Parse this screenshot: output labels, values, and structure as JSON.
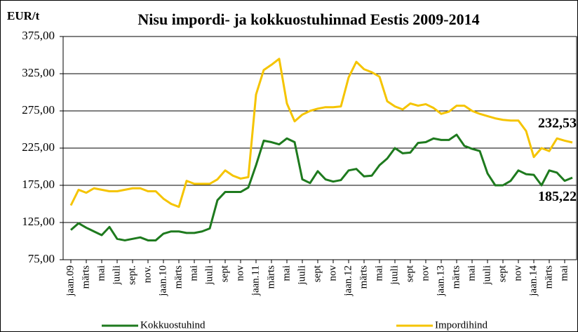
{
  "chart_data": {
    "type": "line",
    "title": "Nisu impordi- ja kokkuostuhinnad Eestis 2009-2014",
    "y_label": "EUR/t",
    "categories": [
      "jaan.09",
      null,
      "märts",
      null,
      "mai",
      null,
      "juuli",
      null,
      "sept.",
      null,
      "nov.",
      null,
      "jaan.10",
      null,
      "märts",
      null,
      "mai",
      null,
      "juuli",
      null,
      "sept",
      null,
      "nov",
      null,
      "jaan.11",
      null,
      "märts",
      null,
      "mai",
      null,
      "juuli",
      null,
      "sept",
      null,
      "nov",
      null,
      "jaan.12",
      null,
      "märts",
      null,
      "mai",
      null,
      "juuli",
      null,
      "sept",
      null,
      "nov",
      null,
      "jaan.13",
      null,
      "märts",
      null,
      "mai",
      null,
      "juuli",
      null,
      "sept",
      null,
      "nov",
      null,
      "jaan.14",
      null,
      "märts",
      null,
      "mai",
      null
    ],
    "series": [
      {
        "name": "Kokkuostuhind",
        "color": "#1e7a1e",
        "values": [
          115,
          124,
          118,
          113,
          108,
          119,
          103,
          101,
          103,
          105,
          101,
          101,
          110,
          113,
          113,
          111,
          111,
          113,
          117,
          155,
          166,
          166,
          166,
          172,
          202,
          235,
          233,
          230,
          238,
          233,
          183,
          178,
          194,
          183,
          180,
          182,
          195,
          197,
          187,
          188,
          202,
          211,
          225,
          218,
          219,
          232,
          233,
          238,
          236,
          236,
          243,
          228,
          224,
          221,
          191,
          175,
          175,
          181,
          195,
          190,
          189,
          175,
          195,
          192,
          181,
          185.22
        ],
        "value_labels": [
          null,
          null,
          null,
          null,
          null,
          null,
          null,
          null,
          null,
          null,
          null,
          null,
          null,
          null,
          null,
          null,
          null,
          null,
          null,
          null,
          null,
          null,
          null,
          null,
          null,
          null,
          null,
          null,
          null,
          null,
          null,
          null,
          null,
          null,
          null,
          null,
          null,
          null,
          null,
          null,
          null,
          null,
          null,
          null,
          null,
          null,
          null,
          null,
          null,
          null,
          null,
          null,
          null,
          null,
          null,
          null,
          null,
          null,
          null,
          null,
          null,
          null,
          null,
          null,
          null,
          "185,22"
        ]
      },
      {
        "name": "Impordihind",
        "color": "#f5c400",
        "values": [
          148,
          169,
          165,
          171,
          169,
          167,
          167,
          169,
          171,
          171,
          167,
          167,
          157,
          150,
          146,
          181,
          177,
          177,
          177,
          183,
          195,
          188,
          184,
          186,
          297,
          330,
          337,
          345,
          285,
          261,
          270,
          275,
          278,
          280,
          280,
          281,
          320,
          341,
          331,
          327,
          321,
          288,
          281,
          277,
          285,
          282,
          284,
          279,
          271,
          274,
          282,
          282,
          275,
          271,
          268,
          265,
          263,
          262,
          262,
          248,
          213,
          225,
          221,
          238,
          235,
          232.53
        ],
        "value_labels": [
          null,
          null,
          null,
          null,
          null,
          null,
          null,
          null,
          null,
          null,
          null,
          null,
          null,
          null,
          null,
          null,
          null,
          null,
          null,
          null,
          null,
          null,
          null,
          null,
          null,
          null,
          null,
          null,
          null,
          null,
          null,
          null,
          null,
          null,
          null,
          null,
          null,
          null,
          null,
          null,
          null,
          null,
          null,
          null,
          null,
          null,
          null,
          null,
          null,
          null,
          null,
          null,
          null,
          null,
          null,
          null,
          null,
          null,
          null,
          null,
          null,
          null,
          null,
          null,
          null,
          "232,53"
        ]
      }
    ],
    "ylim": [
      75,
      375
    ],
    "yticks": [
      {
        "value": 75,
        "label": "75,00"
      },
      {
        "value": 125,
        "label": "125,00"
      },
      {
        "value": 175,
        "label": "175,00"
      },
      {
        "value": 225,
        "label": "225,00"
      },
      {
        "value": 275,
        "label": "275,00"
      },
      {
        "value": 325,
        "label": "325,00"
      },
      {
        "value": 375,
        "label": "375,00"
      }
    ],
    "grid": true,
    "legend": "bottom"
  }
}
